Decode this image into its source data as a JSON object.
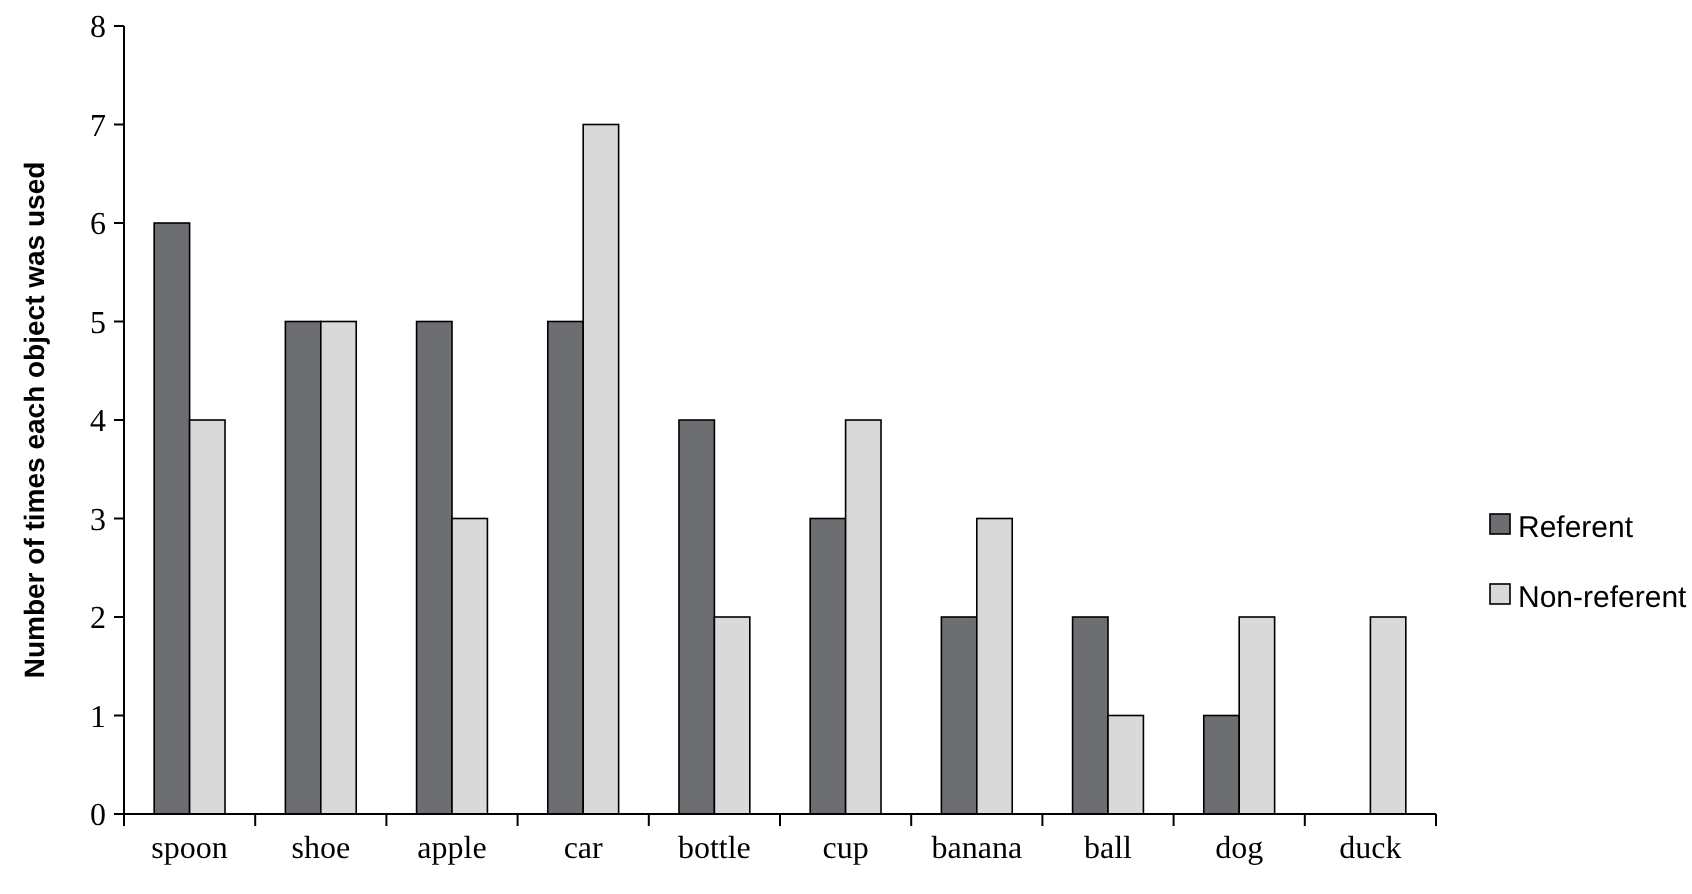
{
  "chart_data": {
    "type": "bar",
    "ylabel": "Number of times each object was used",
    "categories": [
      "spoon",
      "shoe",
      "apple",
      "car",
      "bottle",
      "cup",
      "banana",
      "ball",
      "dog",
      "duck"
    ],
    "series": [
      {
        "name": "Referent",
        "color": "#6d6e71",
        "values": [
          6,
          5,
          5,
          5,
          4,
          3,
          2,
          2,
          1,
          0
        ]
      },
      {
        "name": "Non-referent",
        "color": "#d9d9d9",
        "values": [
          4,
          5,
          3,
          7,
          2,
          4,
          3,
          1,
          2,
          2
        ]
      }
    ],
    "ylim": [
      0,
      8
    ],
    "yticks": [
      0,
      1,
      2,
      3,
      4,
      5,
      6,
      7,
      8
    ],
    "grid": false,
    "legend": "right"
  }
}
